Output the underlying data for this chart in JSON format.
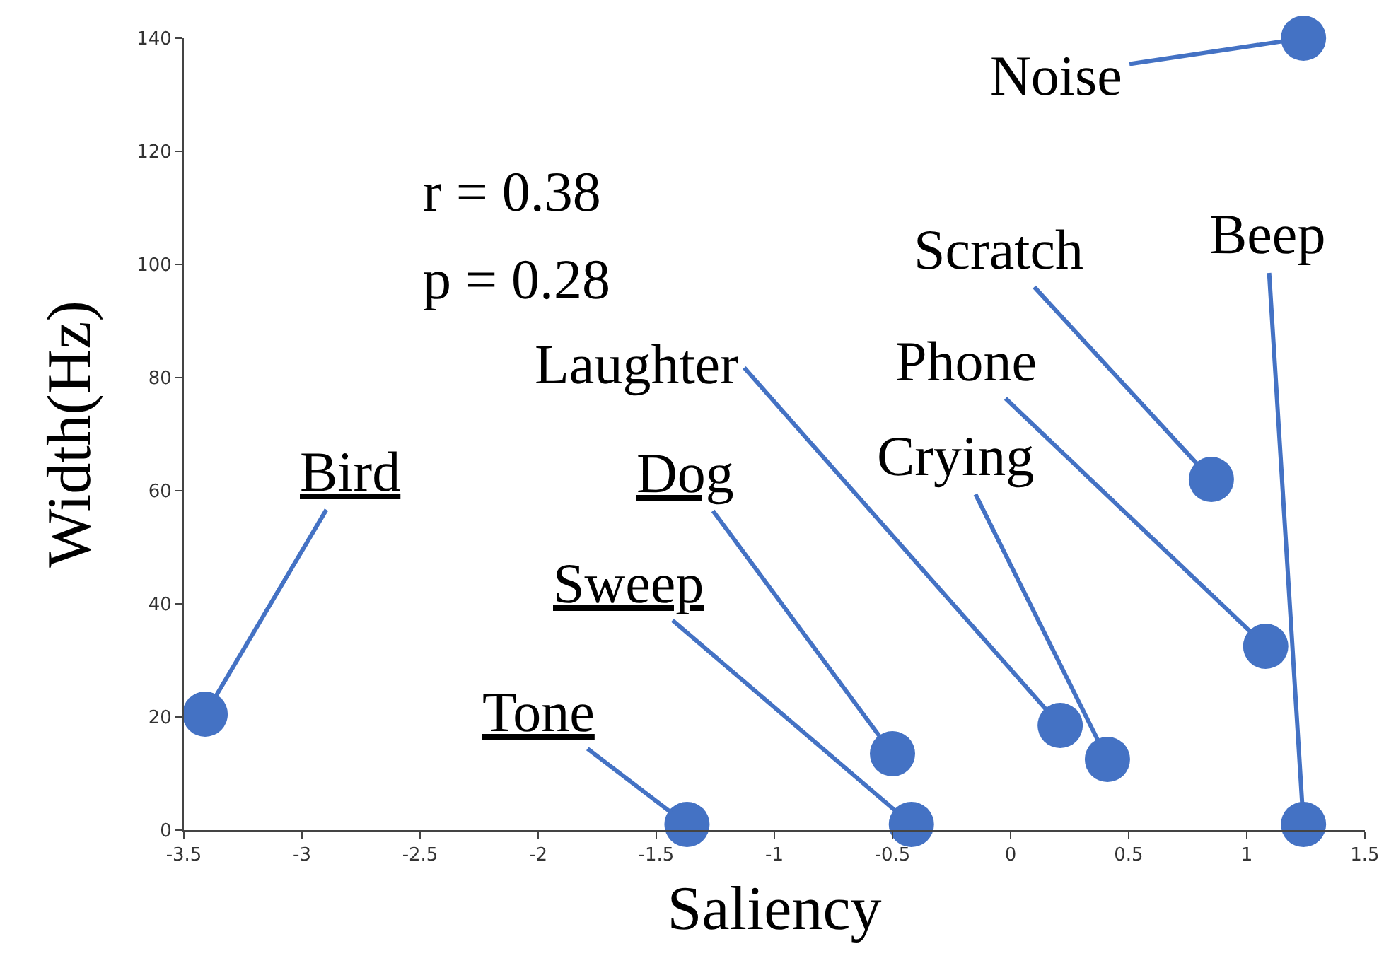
{
  "chart_data": {
    "type": "scatter",
    "xlabel": "Saliency",
    "ylabel": "Width(Hz)",
    "x": [
      -3.41,
      -1.37,
      -0.5,
      -0.42,
      0.21,
      0.41,
      0.85,
      1.08,
      1.24,
      1.24
    ],
    "series": [
      {
        "color": "#4472c4",
        "values": [
          20.5,
          1,
          13.5,
          1,
          18.5,
          12.5,
          62,
          32.5,
          1,
          140
        ]
      }
    ],
    "xlim": [
      -3.5,
      1.5
    ],
    "xticks": [
      -3.5,
      -3,
      -2.5,
      -2,
      -1.5,
      -1,
      -0.5,
      0,
      0.5,
      1,
      1.5
    ],
    "ylim": [
      0,
      140
    ],
    "yticks": [
      0,
      20,
      40,
      60,
      80,
      100,
      120,
      140
    ],
    "marker": "circle",
    "annotations": [
      "r = 0.38",
      "p = 0.28",
      {
        "text": "Bird",
        "x": -3.41,
        "y": 20.5
      },
      {
        "text": "Tone",
        "x": -1.37,
        "y": 1
      },
      {
        "text": "Dog",
        "x": -0.5,
        "y": 13.5
      },
      {
        "text": "Sweep",
        "x": -0.42,
        "y": 1
      },
      {
        "text": "Laughter",
        "x": 0.21,
        "y": 18.5
      },
      {
        "text": "Crying",
        "x": 0.41,
        "y": 12.5
      },
      {
        "text": "Scratch",
        "x": 0.85,
        "y": 62
      },
      {
        "text": "Phone",
        "x": 1.08,
        "y": 32.5
      },
      {
        "text": "Beep",
        "x": 1.24,
        "y": 1
      },
      {
        "text": "Noise",
        "x": 1.24,
        "y": 140
      }
    ]
  }
}
